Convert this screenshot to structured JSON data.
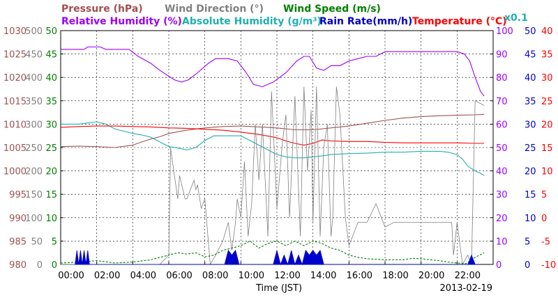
{
  "chart_data": {
    "type": "line",
    "date": "2013-02-19",
    "xlabel": "Time (JST)",
    "x_ticks": [
      "00:00",
      "02:00",
      "04:00",
      "06:00",
      "08:00",
      "10:00",
      "12:00",
      "14:00",
      "16:00",
      "18:00",
      "20:00",
      "22:00"
    ],
    "xlim": [
      0,
      24
    ],
    "scale_note": "x0.1",
    "axes": [
      {
        "name": "Pressure",
        "unit_label": "Pressure (hPa)",
        "color": "#a05050",
        "side": "left",
        "range": [
          980,
          1030
        ],
        "ticks": [
          "1030",
          "1025",
          "1020",
          "1015",
          "1010",
          "1005",
          "1000",
          "995",
          "990",
          "985",
          "980"
        ]
      },
      {
        "name": "Wind Direction",
        "unit_label": "Wind Direction (°)",
        "color": "#808080",
        "side": "left",
        "range": [
          0,
          500
        ],
        "ticks": [
          "500",
          "450",
          "400",
          "350",
          "300",
          "250",
          "200",
          "150",
          "100",
          "50",
          "0"
        ]
      },
      {
        "name": "Wind Speed",
        "unit_label": "Wind Speed (m/s)",
        "color": "#008000",
        "side": "left",
        "range": [
          0,
          50
        ],
        "ticks": [
          "50",
          "45",
          "40",
          "35",
          "30",
          "25",
          "20",
          "15",
          "10",
          "5",
          "0"
        ]
      },
      {
        "name": "Relative Humidity",
        "unit_label": "Relative Humidity (%)",
        "color": "#9900ff",
        "side": "right",
        "range": [
          0,
          100
        ],
        "ticks": [
          "100",
          "90",
          "80",
          "70",
          "60",
          "50",
          "40",
          "30",
          "20",
          "10",
          "0"
        ]
      },
      {
        "name": "Absolute Humidity / Rain Rate",
        "unit_label": "Absolute Humidity (g/m³) / Rain Rate (mm/h)",
        "color": "#0000cc",
        "side": "right",
        "range": [
          0,
          50
        ],
        "ticks": [
          "50",
          "45",
          "40",
          "35",
          "30",
          "25",
          "20",
          "15",
          "10",
          "5",
          "0"
        ]
      },
      {
        "name": "Temperature",
        "unit_label": "Temperature (°C)",
        "color": "#ff0000",
        "side": "right",
        "range": [
          -10,
          40
        ],
        "ticks": [
          "40",
          "35",
          "30",
          "25",
          "20",
          "15",
          "10",
          "5",
          "0",
          "-5",
          "-10"
        ]
      }
    ],
    "legend": [
      {
        "label": "Pressure (hPa)",
        "color": "#a05050"
      },
      {
        "label": "Wind Direction (°)",
        "color": "#808080"
      },
      {
        "label": "Wind Speed (m/s)",
        "color": "#008000"
      },
      {
        "label": "Relative Humidity (%)",
        "color": "#9900ff"
      },
      {
        "label": "Absolute Humidity (g/m³)",
        "color": "#20b0b0"
      },
      {
        "label": "Rain Rate(mm/h)",
        "color": "#0000cc"
      },
      {
        "label": "Temperature (°C)",
        "color": "#ff0000"
      }
    ],
    "series": [
      {
        "name": "Relative Humidity",
        "axis": 3,
        "color": "#9900ff",
        "x": [
          0,
          1.3,
          1.5,
          2.2,
          2.5,
          3.8,
          4.3,
          5.0,
          5.5,
          6.3,
          6.7,
          7.1,
          7.6,
          8.2,
          8.6,
          9.3,
          9.8,
          10.3,
          10.7,
          11.2,
          11.8,
          12.5,
          13.1,
          13.5,
          13.8,
          14.2,
          14.6,
          15.0,
          15.5,
          16.0,
          16.5,
          17.0,
          17.5,
          18.0,
          19.0,
          20.0,
          21.0,
          21.5,
          22.0,
          22.4,
          22.7,
          23.0,
          23.3,
          23.5
        ],
        "y": [
          92,
          92,
          93,
          93,
          92,
          92,
          89,
          86,
          83,
          79,
          78,
          79,
          82,
          86,
          88,
          88,
          87,
          82,
          77,
          76,
          78,
          82,
          87,
          89,
          89,
          84,
          83,
          85,
          85,
          87,
          88,
          89,
          89,
          91,
          91,
          91,
          91,
          91,
          91,
          90,
          87,
          80,
          74,
          72
        ]
      },
      {
        "name": "Absolute Humidity",
        "axis": 4,
        "color": "#20b0b0",
        "x": [
          0,
          1.0,
          2.0,
          2.5,
          3.0,
          3.5,
          4.0,
          4.5,
          5.0,
          5.5,
          6.0,
          6.5,
          7.0,
          7.5,
          8.0,
          8.5,
          9.0,
          9.5,
          10.0,
          10.5,
          11.0,
          11.5,
          12.0,
          12.5,
          13.0,
          13.5,
          14.0,
          14.5,
          15.0,
          16.0,
          17.0,
          18.0,
          19.0,
          20.0,
          21.0,
          21.5,
          22.0,
          22.3,
          22.6,
          23.0,
          23.3,
          23.5
        ],
        "y": [
          30,
          30,
          30.5,
          30,
          29,
          28.5,
          28,
          27.7,
          27.2,
          26.2,
          25.2,
          24.9,
          24.5,
          25,
          26.5,
          27.5,
          27.5,
          27.5,
          27.5,
          26.5,
          25.5,
          24.5,
          23.5,
          23,
          22.8,
          22.8,
          23,
          23.2,
          23.5,
          23.7,
          23.8,
          24,
          24,
          24.2,
          24.2,
          24,
          23.5,
          22.5,
          21,
          20,
          19.5,
          19
        ]
      },
      {
        "name": "Pressure",
        "axis": 0,
        "color": "#a05050",
        "x": [
          0,
          1,
          2,
          3,
          4,
          4.5,
          5,
          5.5,
          6,
          7,
          8,
          9,
          10,
          11,
          12,
          13,
          14,
          15,
          16,
          17,
          18,
          19,
          20,
          21,
          22,
          23,
          23.5
        ],
        "y": [
          1005.2,
          1005.3,
          1005.2,
          1005,
          1005.5,
          1006.2,
          1006.8,
          1007.3,
          1008,
          1008.7,
          1009.2,
          1009.5,
          1009.6,
          1009.4,
          1009.2,
          1008.8,
          1008.8,
          1009.2,
          1009.6,
          1010.2,
          1010.8,
          1011.3,
          1011.6,
          1011.8,
          1011.9,
          1012,
          1012.1
        ]
      },
      {
        "name": "Temperature",
        "axis": 5,
        "color": "#ff0000",
        "x": [
          0,
          1,
          2,
          3,
          4,
          5,
          6,
          7,
          8,
          9,
          10,
          11,
          12,
          12.5,
          13,
          13.5,
          14,
          14.5,
          15,
          16,
          17,
          18,
          19,
          20,
          21,
          22,
          23,
          23.5
        ],
        "y": [
          19.3,
          19.5,
          19.6,
          19.6,
          19.5,
          19.4,
          19.2,
          19.1,
          18.9,
          18.7,
          18.3,
          17.8,
          17.1,
          16.4,
          15.9,
          15.5,
          15.9,
          16.6,
          16.4,
          16.3,
          16.3,
          16.1,
          16,
          16,
          16,
          16,
          15.9,
          15.9
        ]
      },
      {
        "name": "Wind Direction",
        "axis": 1,
        "color": "#808080",
        "x": [
          0,
          5.0,
          5.5,
          6.0,
          6.1,
          6.2,
          6.5,
          6.6,
          6.9,
          7.0,
          7.4,
          7.5,
          7.6,
          7.8,
          8.0,
          8.3,
          8.6,
          9.0,
          9.3,
          9.5,
          9.7,
          9.8,
          10.0,
          10.2,
          10.4,
          10.6,
          10.8,
          11.0,
          11.2,
          11.5,
          11.7,
          12.0,
          12.3,
          12.5,
          12.7,
          13.0,
          13.3,
          13.5,
          13.7,
          13.9,
          14.0,
          14.2,
          14.4,
          14.6,
          14.8,
          15.0,
          15.1,
          15.3,
          15.5,
          15.8,
          16.0,
          16.5,
          17.0,
          17.5,
          17.8,
          18.0,
          18.5,
          19.0,
          20.0,
          21.0,
          21.7,
          21.8,
          22.0,
          22.3,
          22.6,
          22.8,
          23.0,
          23.5
        ],
        "y": [
          0,
          0,
          0,
          20,
          250,
          220,
          140,
          190,
          140,
          140,
          180,
          160,
          170,
          120,
          140,
          0,
          20,
          50,
          90,
          30,
          90,
          140,
          100,
          220,
          60,
          130,
          300,
          180,
          300,
          60,
          370,
          120,
          260,
          320,
          100,
          360,
          60,
          380,
          200,
          330,
          90,
          380,
          60,
          250,
          300,
          60,
          100,
          380,
          320,
          100,
          40,
          90,
          90,
          130,
          100,
          80,
          90,
          90,
          90,
          90,
          90,
          20,
          90,
          0,
          20,
          0,
          350,
          340
        ]
      },
      {
        "name": "Wind Speed",
        "axis": 2,
        "color": "#008000",
        "x": [
          0,
          1,
          2,
          3,
          4,
          5,
          5.5,
          6,
          6.5,
          7,
          7.5,
          8,
          8.5,
          9,
          9.5,
          10,
          10.5,
          11,
          11.5,
          12,
          12.5,
          13,
          13.5,
          14,
          14.5,
          15,
          15.5,
          16,
          16.5,
          17,
          17.5,
          18,
          18.5,
          19,
          19.5,
          20,
          20.5,
          21,
          21.5,
          22,
          22.5,
          23,
          23.5
        ],
        "y": [
          0.3,
          0.5,
          0.8,
          0.3,
          0.5,
          1,
          1.5,
          2,
          2.5,
          2.2,
          2.5,
          1.6,
          2,
          3,
          3.5,
          4,
          5,
          3.5,
          4.5,
          5,
          4,
          5,
          4,
          5,
          4.5,
          3.5,
          3,
          2,
          1.5,
          1.2,
          1.1,
          1,
          1,
          1,
          1.3,
          1.2,
          1,
          0.8,
          0.5,
          0.3,
          0.2,
          1.5,
          2.5
        ]
      },
      {
        "name": "Rain Rate",
        "axis": 4,
        "color": "#0000cc",
        "x": [
          0.8,
          0.9,
          1.0,
          1.1,
          1.2,
          1.3,
          1.4,
          1.5,
          1.6,
          1.7,
          9.1,
          9.3,
          9.5,
          9.7,
          9.9,
          11.8,
          12.0,
          12.2,
          12.4,
          12.6,
          12.8,
          13.0,
          13.2,
          13.4,
          13.6,
          13.8,
          14.0,
          14.2,
          14.4,
          14.6,
          22.6,
          22.8,
          23.0
        ],
        "y": [
          0,
          3,
          0,
          3,
          0,
          3,
          0,
          3,
          0,
          0,
          0,
          3,
          2,
          3,
          0,
          0,
          3,
          0,
          2,
          0,
          3,
          0,
          2,
          0,
          3,
          2,
          3,
          2,
          3,
          0,
          0,
          2,
          0
        ]
      }
    ]
  }
}
